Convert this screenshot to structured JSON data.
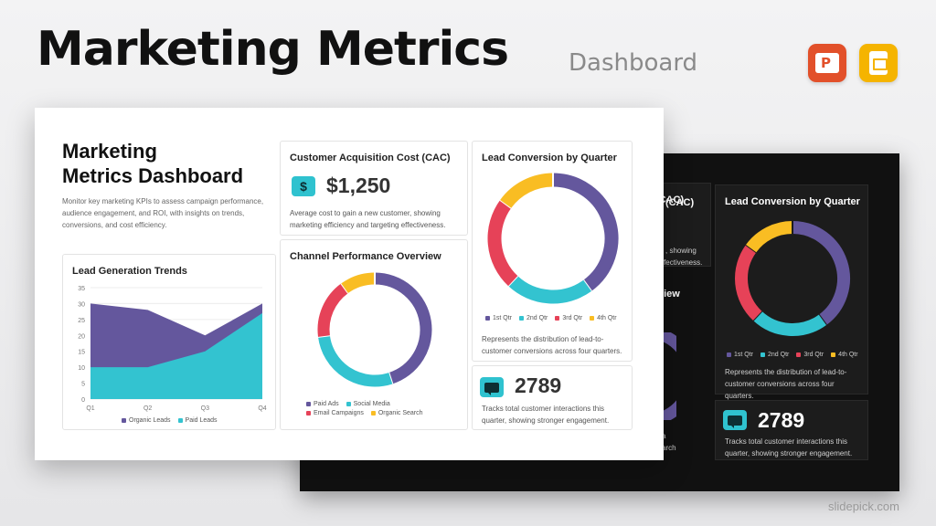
{
  "hero": {
    "title": "Marketing Metrics",
    "subtitle": "Dashboard"
  },
  "apps": [
    {
      "name": "PowerPoint",
      "icon": "powerpoint-icon",
      "color": "#e2502a"
    },
    {
      "name": "Google Slides",
      "icon": "google-slides-icon",
      "color": "#f5b400"
    }
  ],
  "slide": {
    "title_line1": "Marketing",
    "title_line2": "Metrics Dashboard",
    "description": "Monitor key marketing KPIs to assess campaign performance, audience engagement, and ROI, with insights on trends, conversions, and cost efficiency."
  },
  "cac": {
    "title": "Customer Acquisition Cost (CAC)",
    "icon": "dollar-icon",
    "icon_glyph": "$",
    "value": "$1,250",
    "description": "Average cost to gain a new customer, showing marketing efficiency and targeting effectiveness."
  },
  "interactions": {
    "value": "2789",
    "icon": "chat-icon",
    "description": "Tracks total customer interactions this quarter, showing stronger engagement."
  },
  "lead_conversion": {
    "description": "Represents the distribution of lead-to-customer conversions across four quarters."
  },
  "dark_slide": {
    "cac_title_fragment": "(CAC)",
    "cac_desc_line1": ", showing",
    "cac_desc_line2": "ffectiveness.",
    "channel_title_fragment": "view",
    "channel_legend_fragment_a": "a",
    "channel_legend_fragment_b": "arch"
  },
  "colors": {
    "purple": "#64579d",
    "teal": "#33c3d0",
    "red": "#e64258",
    "yellow": "#f9bd23"
  },
  "chart_data": [
    {
      "type": "area",
      "title": "Lead Generation Trends",
      "categories": [
        "Q1",
        "Q2",
        "Q3",
        "Q4"
      ],
      "series": [
        {
          "name": "Organic Leads",
          "values": [
            30,
            28,
            20,
            30
          ],
          "color": "#64579d"
        },
        {
          "name": "Paid Leads",
          "values": [
            10,
            10,
            15,
            27
          ],
          "color": "#33c3d0"
        }
      ],
      "ylim": [
        0,
        35
      ],
      "yticks": [
        "0",
        "5",
        "10",
        "15",
        "20",
        "25",
        "30",
        "35"
      ],
      "grid": true,
      "legend": "bottom"
    },
    {
      "type": "pie",
      "title": "Channel Performance Overview",
      "labels": [
        "Paid Ads",
        "Social Media",
        "Email Campaigns",
        "Organic Search"
      ],
      "values": [
        45,
        28,
        17,
        10
      ],
      "colors": [
        "#64579d",
        "#33c3d0",
        "#e64258",
        "#f9bd23"
      ],
      "legend": "bottom"
    },
    {
      "type": "pie",
      "title": "Lead Conversion by Quarter",
      "labels": [
        "1st Qtr",
        "2nd Qtr",
        "3rd Qtr",
        "4th Qtr"
      ],
      "values": [
        40,
        22,
        23,
        15
      ],
      "colors": [
        "#64579d",
        "#33c3d0",
        "#e64258",
        "#f9bd23"
      ],
      "legend": "bottom"
    }
  ],
  "watermark": "slidepick.com"
}
